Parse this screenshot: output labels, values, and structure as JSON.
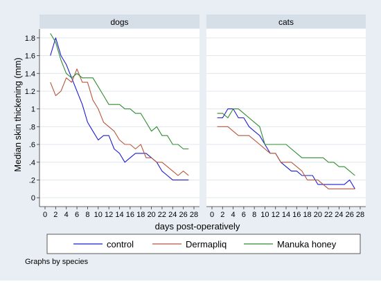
{
  "chart_data": {
    "type": "line",
    "ylabel": "Median skin thickening (mm)",
    "xlabel": "days post-operatively",
    "note": "Graphs by species",
    "xlim": [
      0,
      28
    ],
    "ylim": [
      0,
      1.8
    ],
    "x_ticks": [
      0,
      2,
      4,
      6,
      8,
      10,
      12,
      14,
      16,
      18,
      20,
      22,
      24,
      26,
      28
    ],
    "y_ticks": [
      0,
      0.2,
      0.4,
      0.6,
      0.8,
      1.0,
      1.2,
      1.4,
      1.6,
      1.8
    ],
    "y_tick_labels": [
      "0",
      ".2",
      ".4",
      ".6",
      ".8",
      "1",
      "1.2",
      "1.4",
      "1.6",
      "1.8"
    ],
    "grid": true,
    "legend": "bottom",
    "colors": {
      "control": "#1a1ad6",
      "Dermapliq": "#b8553a",
      "Manuka honey": "#2e8b2e"
    },
    "panels": [
      {
        "title": "dogs",
        "series": [
          {
            "name": "control",
            "x": [
              1,
              2,
              3,
              4,
              5,
              6,
              7,
              8,
              9,
              10,
              11,
              12,
              13,
              14,
              15,
              16,
              17,
              18,
              19,
              20,
              21,
              22,
              23,
              24,
              25,
              26,
              27
            ],
            "values": [
              1.6,
              1.8,
              1.6,
              1.5,
              1.35,
              1.2,
              1.05,
              0.85,
              0.75,
              0.65,
              0.7,
              0.7,
              0.55,
              0.5,
              0.4,
              0.45,
              0.5,
              0.5,
              0.5,
              0.45,
              0.4,
              0.3,
              0.25,
              0.2,
              0.2,
              0.2,
              0.2
            ]
          },
          {
            "name": "Dermapliq",
            "x": [
              1,
              2,
              3,
              4,
              5,
              6,
              7,
              8,
              9,
              10,
              11,
              12,
              13,
              14,
              15,
              16,
              17,
              18,
              19,
              20,
              21,
              22,
              23,
              24,
              25,
              26,
              27
            ],
            "values": [
              1.3,
              1.15,
              1.2,
              1.35,
              1.3,
              1.45,
              1.3,
              1.3,
              1.1,
              1.0,
              0.85,
              0.8,
              0.75,
              0.65,
              0.6,
              0.6,
              0.55,
              0.6,
              0.45,
              0.45,
              0.4,
              0.4,
              0.35,
              0.3,
              0.25,
              0.3,
              0.25
            ]
          },
          {
            "name": "Manuka honey",
            "x": [
              1,
              2,
              3,
              4,
              5,
              6,
              7,
              8,
              9,
              10,
              11,
              12,
              13,
              14,
              15,
              16,
              17,
              18,
              19,
              20,
              21,
              22,
              23,
              24,
              25,
              26,
              27
            ],
            "values": [
              1.85,
              1.75,
              1.55,
              1.4,
              1.35,
              1.4,
              1.35,
              1.35,
              1.35,
              1.25,
              1.15,
              1.05,
              1.05,
              1.05,
              1.0,
              1.0,
              0.95,
              0.95,
              0.85,
              0.75,
              0.8,
              0.7,
              0.7,
              0.6,
              0.6,
              0.55,
              0.55
            ]
          }
        ]
      },
      {
        "title": "cats",
        "series": [
          {
            "name": "control",
            "x": [
              1,
              2,
              3,
              4,
              5,
              6,
              7,
              8,
              9,
              10,
              11,
              12,
              13,
              14,
              15,
              16,
              17,
              18,
              19,
              20,
              21,
              22,
              23,
              24,
              25,
              26,
              27
            ],
            "values": [
              0.9,
              0.9,
              1.0,
              1.0,
              0.9,
              0.9,
              0.8,
              0.75,
              0.7,
              0.6,
              0.5,
              0.5,
              0.4,
              0.35,
              0.3,
              0.3,
              0.25,
              0.25,
              0.25,
              0.15,
              0.15,
              0.15,
              0.15,
              0.15,
              0.15,
              0.2,
              0.1
            ]
          },
          {
            "name": "Dermapliq",
            "x": [
              1,
              2,
              3,
              4,
              5,
              6,
              7,
              8,
              9,
              10,
              11,
              12,
              13,
              14,
              15,
              16,
              17,
              18,
              19,
              20,
              21,
              22,
              23,
              24,
              25,
              26,
              27
            ],
            "values": [
              0.8,
              0.8,
              0.8,
              0.75,
              0.7,
              0.7,
              0.7,
              0.65,
              0.6,
              0.55,
              0.5,
              0.5,
              0.4,
              0.4,
              0.4,
              0.35,
              0.3,
              0.2,
              0.2,
              0.2,
              0.15,
              0.1,
              0.1,
              0.1,
              0.1,
              0.1,
              0.1
            ]
          },
          {
            "name": "Manuka honey",
            "x": [
              1,
              2,
              3,
              4,
              5,
              6,
              7,
              8,
              9,
              10,
              11,
              12,
              13,
              14,
              15,
              16,
              17,
              18,
              19,
              20,
              21,
              22,
              23,
              24,
              25,
              26,
              27
            ],
            "values": [
              0.95,
              0.95,
              0.9,
              1.0,
              1.0,
              0.95,
              0.9,
              0.85,
              0.8,
              0.6,
              0.6,
              0.6,
              0.6,
              0.6,
              0.55,
              0.5,
              0.45,
              0.45,
              0.45,
              0.45,
              0.45,
              0.4,
              0.4,
              0.35,
              0.35,
              0.3,
              0.25
            ]
          }
        ]
      }
    ]
  }
}
